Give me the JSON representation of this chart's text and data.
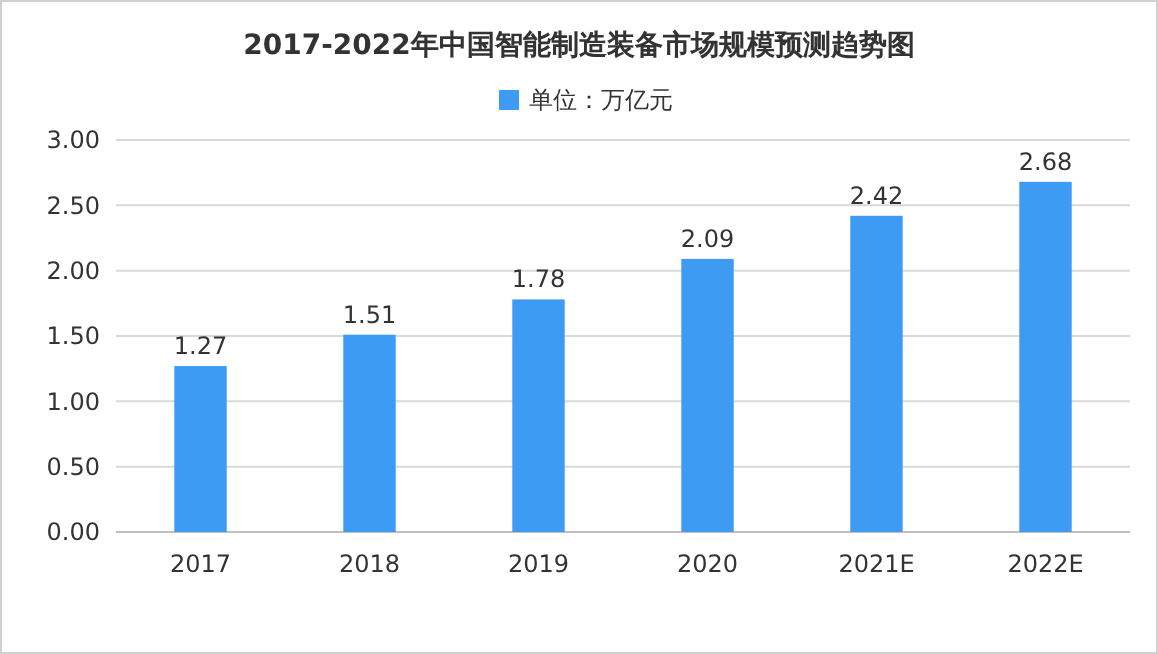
{
  "chart_data": {
    "type": "bar",
    "title": "2017-2022年中国智能制造装备市场规模预测趋势图",
    "categories": [
      "2017",
      "2018",
      "2019",
      "2020",
      "2021E",
      "2022E"
    ],
    "series": [
      {
        "name": "单位：万亿元",
        "color": "#3d9bf3",
        "values": [
          1.27,
          1.51,
          1.78,
          2.09,
          2.42,
          2.68
        ]
      }
    ],
    "ylim": [
      0,
      3
    ],
    "yticks": [
      {
        "value": 0,
        "label": "0.00"
      },
      {
        "value": 0.5,
        "label": "0.50"
      },
      {
        "value": 1,
        "label": "1.00"
      },
      {
        "value": 1.5,
        "label": "1.50"
      },
      {
        "value": 2,
        "label": "2.00"
      },
      {
        "value": 2.5,
        "label": "2.50"
      },
      {
        "value": 3,
        "label": "3.00"
      }
    ],
    "grid": "y",
    "legend": "top",
    "data_labels": true
  }
}
